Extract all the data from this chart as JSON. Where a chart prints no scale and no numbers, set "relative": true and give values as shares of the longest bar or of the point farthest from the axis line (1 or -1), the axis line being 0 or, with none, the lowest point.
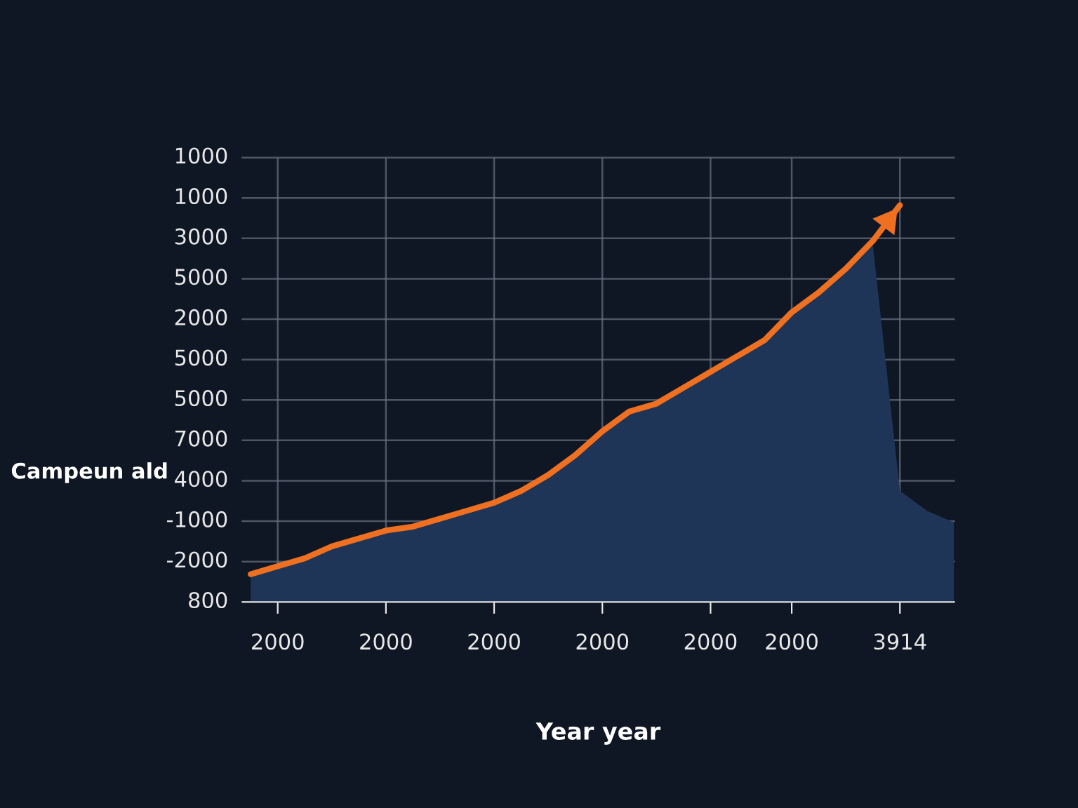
{
  "chart_data": {
    "type": "line",
    "xlabel": "Year year",
    "ylabel": "Campeun ald",
    "relative": true,
    "grid": true,
    "categories": [
      null,
      "2000",
      null,
      null,
      null,
      "2000",
      null,
      null,
      null,
      "2000",
      null,
      null,
      null,
      "2000",
      null,
      null,
      null,
      "2000",
      null,
      null,
      "2000",
      null,
      null,
      null,
      "3914",
      null,
      null
    ],
    "annotations": [
      "1000",
      "1000",
      "3000",
      "5000",
      "2000",
      "5000",
      "5000",
      "7000",
      "4000",
      "-1000",
      "-2000",
      "800"
    ],
    "series": [
      {
        "type": "area",
        "color": "#1e3557",
        "values": [
          0.07,
          0.09,
          0.11,
          0.14,
          0.16,
          0.18,
          0.19,
          0.21,
          0.23,
          0.25,
          0.28,
          0.32,
          0.37,
          0.43,
          0.48,
          0.5,
          0.54,
          0.58,
          0.62,
          0.66,
          0.73,
          0.78,
          0.84,
          0.9,
          0.28,
          0.23,
          0.2
        ]
      },
      {
        "color": "#f07022",
        "values": [
          0.07,
          0.09,
          0.11,
          0.14,
          0.16,
          0.18,
          0.19,
          0.21,
          0.23,
          0.25,
          0.28,
          0.32,
          0.37,
          0.43,
          0.48,
          0.5,
          0.54,
          0.58,
          0.62,
          0.66,
          0.73,
          0.78,
          0.84,
          0.91,
          1.0,
          null,
          null
        ]
      }
    ]
  }
}
